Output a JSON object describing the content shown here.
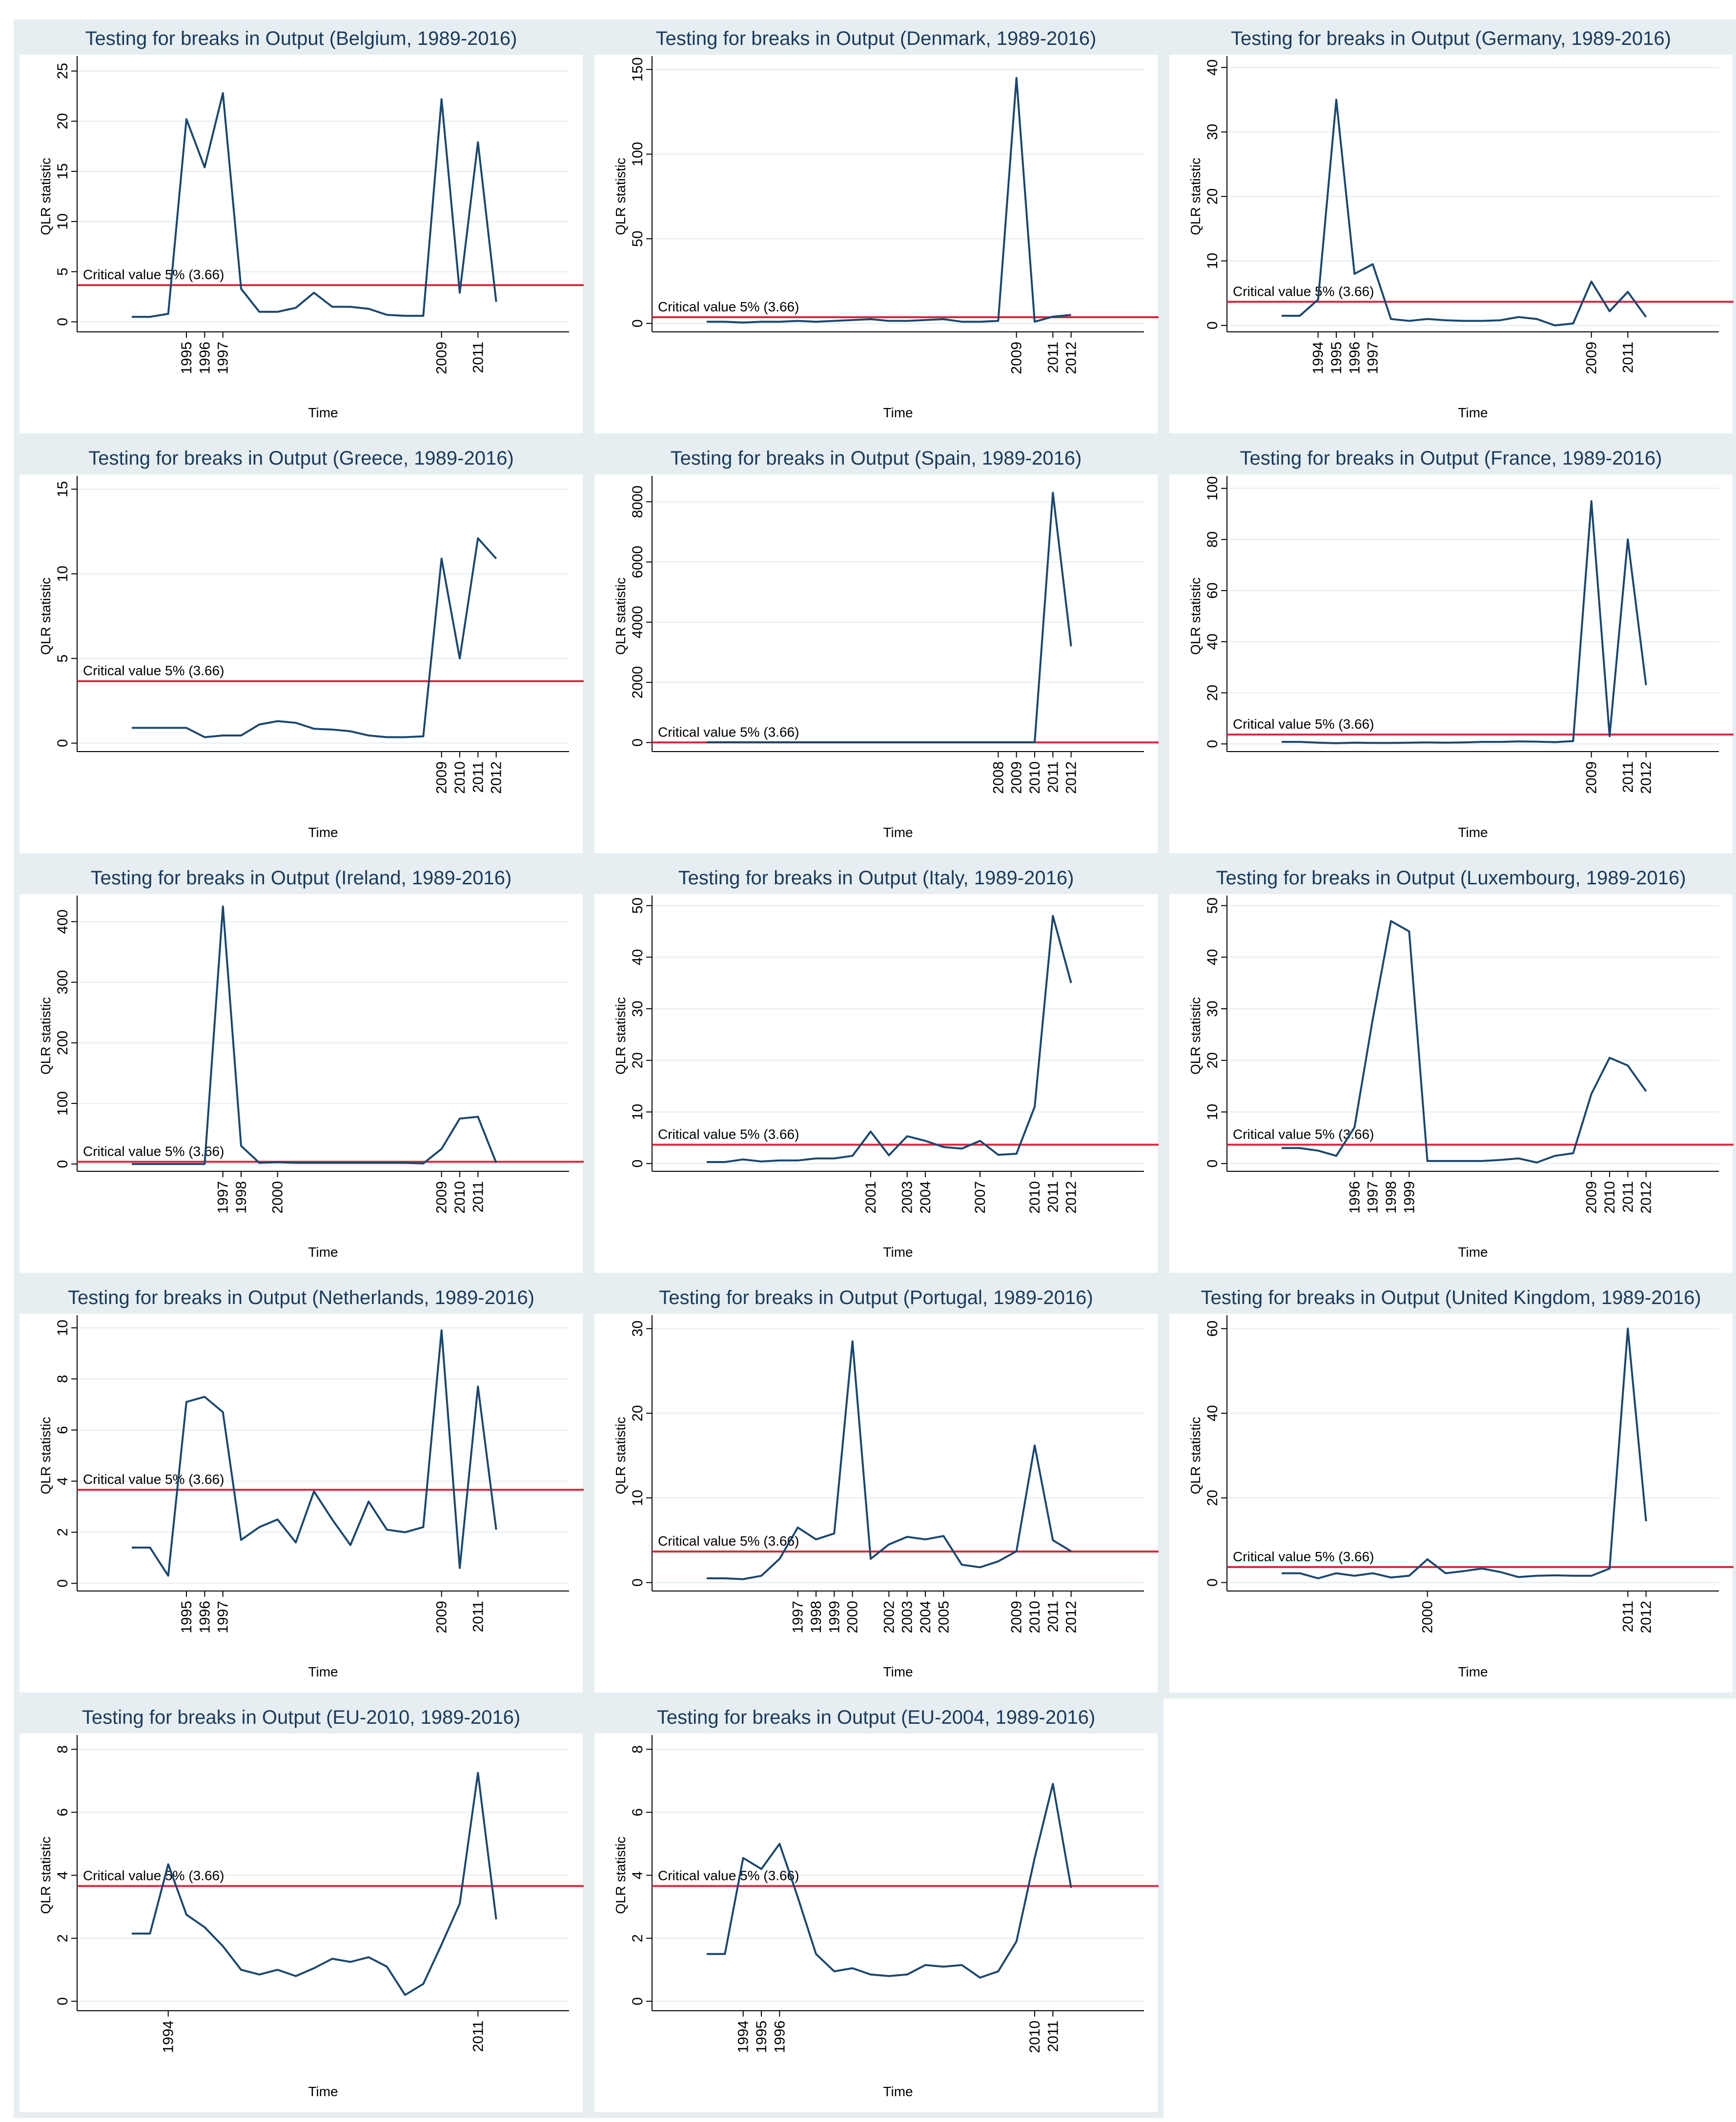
{
  "chart_data": [
    {
      "type": "line",
      "title": "Testing for breaks in Output (Belgium, 1989-2016)",
      "xlabel": "Time",
      "ylabel": "QLR statistic",
      "annotation": "Critical value 5% (3.66)",
      "critical_value": 3.66,
      "critical_color": "#d7263d",
      "color": "#1a476f",
      "grid": true,
      "x": [
        1992,
        1993,
        1994,
        1995,
        1996,
        1997,
        1998,
        1999,
        2000,
        2001,
        2002,
        2003,
        2004,
        2005,
        2006,
        2007,
        2008,
        2009,
        2010,
        2011,
        2012
      ],
      "values": [
        0.5,
        0.5,
        0.8,
        20.2,
        15.4,
        22.8,
        3.3,
        1.0,
        1.0,
        1.4,
        2.9,
        1.5,
        1.5,
        1.3,
        0.7,
        0.6,
        0.6,
        22.2,
        2.9,
        17.9,
        2.0
      ],
      "xlim": [
        1989,
        2016
      ],
      "xticks": [
        1995,
        1996,
        1997,
        2009,
        2011
      ],
      "ylim": [
        -1,
        26
      ],
      "yticks": [
        0,
        5,
        10,
        15,
        20,
        25
      ]
    },
    {
      "type": "line",
      "title": "Testing for breaks in Output (Denmark, 1989-2016)",
      "xlabel": "Time",
      "ylabel": "QLR statistic",
      "annotation": "Critical value 5% (3.66)",
      "critical_value": 3.66,
      "critical_color": "#d7263d",
      "color": "#1a476f",
      "grid": true,
      "x": [
        1992,
        1993,
        1994,
        1995,
        1996,
        1997,
        1998,
        1999,
        2000,
        2001,
        2002,
        2003,
        2004,
        2005,
        2006,
        2007,
        2008,
        2009,
        2010,
        2011,
        2012
      ],
      "values": [
        1,
        1,
        0.5,
        1,
        1,
        1.5,
        1,
        1.5,
        2,
        2.5,
        1.5,
        1.5,
        2,
        2.5,
        1,
        1,
        1.5,
        145,
        1,
        4,
        5
      ],
      "xlim": [
        1989,
        2016
      ],
      "xticks": [
        2009,
        2011,
        2012
      ],
      "ylim": [
        -5,
        155
      ],
      "yticks": [
        0,
        50,
        100,
        150
      ]
    },
    {
      "type": "line",
      "title": "Testing for breaks in Output (Germany, 1989-2016)",
      "xlabel": "Time",
      "ylabel": "QLR statistic",
      "annotation": "Critical value 5% (3.66)",
      "critical_value": 3.66,
      "critical_color": "#d7263d",
      "color": "#1a476f",
      "grid": true,
      "x": [
        1992,
        1993,
        1994,
        1995,
        1996,
        1997,
        1998,
        1999,
        2000,
        2001,
        2002,
        2003,
        2004,
        2005,
        2006,
        2007,
        2008,
        2009,
        2010,
        2011,
        2012
      ],
      "values": [
        1.5,
        1.5,
        4,
        35,
        8,
        9.5,
        1,
        0.7,
        1,
        0.8,
        0.7,
        0.7,
        0.8,
        1.3,
        1,
        0,
        0.3,
        6.8,
        2.2,
        5.2,
        1.3
      ],
      "xlim": [
        1989,
        2016
      ],
      "xticks": [
        1994,
        1995,
        1996,
        1997,
        2009,
        2011
      ],
      "ylim": [
        -1,
        41
      ],
      "yticks": [
        0,
        10,
        20,
        30,
        40
      ]
    },
    {
      "type": "line",
      "title": "Testing for breaks in Output (Greece, 1989-2016)",
      "xlabel": "Time",
      "ylabel": "QLR statistic",
      "annotation": "Critical value 5% (3.66)",
      "critical_value": 3.66,
      "critical_color": "#d7263d",
      "color": "#1a476f",
      "grid": true,
      "x": [
        1992,
        1993,
        1994,
        1995,
        1996,
        1997,
        1998,
        1999,
        2000,
        2001,
        2002,
        2003,
        2004,
        2005,
        2006,
        2007,
        2008,
        2009,
        2010,
        2011,
        2012
      ],
      "values": [
        0.9,
        0.9,
        0.9,
        0.9,
        0.35,
        0.45,
        0.45,
        1.1,
        1.3,
        1.2,
        0.85,
        0.8,
        0.7,
        0.45,
        0.35,
        0.35,
        0.4,
        10.9,
        5,
        12.1,
        10.9
      ],
      "xlim": [
        1989,
        2016
      ],
      "xticks": [
        2009,
        2010,
        2011,
        2012
      ],
      "ylim": [
        -0.5,
        15.5
      ],
      "yticks": [
        0,
        5,
        10,
        15
      ]
    },
    {
      "type": "line",
      "title": "Testing for breaks in Output (Spain, 1989-2016)",
      "xlabel": "Time",
      "ylabel": "QLR statistic",
      "annotation": "Critical value 5% (3.66)",
      "critical_value": 3.66,
      "critical_color": "#d7263d",
      "color": "#1a476f",
      "grid": true,
      "x": [
        1992,
        1993,
        1994,
        1995,
        1996,
        1997,
        1998,
        1999,
        2000,
        2001,
        2002,
        2003,
        2004,
        2005,
        2006,
        2007,
        2008,
        2009,
        2010,
        2011,
        2012
      ],
      "values": [
        10,
        10,
        10,
        10,
        10,
        10,
        10,
        10,
        10,
        10,
        10,
        10,
        10,
        10,
        10,
        10,
        10,
        10,
        10,
        8300,
        3200
      ],
      "xlim": [
        1989,
        2016
      ],
      "xticks": [
        2008,
        2009,
        2010,
        2011,
        2012
      ],
      "ylim": [
        -300,
        8700
      ],
      "yticks": [
        0,
        2000,
        4000,
        6000,
        8000
      ]
    },
    {
      "type": "line",
      "title": "Testing for breaks in Output (France, 1989-2016)",
      "xlabel": "Time",
      "ylabel": "QLR statistic",
      "annotation": "Critical value 5% (3.66)",
      "critical_value": 3.66,
      "critical_color": "#d7263d",
      "color": "#1a476f",
      "grid": true,
      "x": [
        1992,
        1993,
        1994,
        1995,
        1996,
        1997,
        1998,
        1999,
        2000,
        2001,
        2002,
        2003,
        2004,
        2005,
        2006,
        2007,
        2008,
        2009,
        2010,
        2011,
        2012
      ],
      "values": [
        0.8,
        0.8,
        0.5,
        0.3,
        0.5,
        0.4,
        0.4,
        0.5,
        0.6,
        0.5,
        0.6,
        0.8,
        0.8,
        1,
        0.9,
        0.7,
        1.1,
        95,
        3,
        80,
        23
      ],
      "xlim": [
        1989,
        2016
      ],
      "xticks": [
        2009,
        2011,
        2012
      ],
      "ylim": [
        -3,
        103
      ],
      "yticks": [
        0,
        20,
        40,
        60,
        80,
        100
      ]
    },
    {
      "type": "line",
      "title": "Testing for breaks in Output (Ireland, 1989-2016)",
      "xlabel": "Time",
      "ylabel": "QLR statistic",
      "annotation": "Critical value 5% (3.66)",
      "critical_value": 3.66,
      "critical_color": "#d7263d",
      "color": "#1a476f",
      "grid": true,
      "x": [
        1992,
        1993,
        1994,
        1995,
        1996,
        1997,
        1998,
        1999,
        2000,
        2001,
        2002,
        2003,
        2004,
        2005,
        2006,
        2007,
        2008,
        2009,
        2010,
        2011,
        2012
      ],
      "values": [
        0,
        0,
        0,
        0,
        0,
        425,
        30,
        2,
        3,
        2,
        2,
        2,
        2,
        2,
        2,
        2,
        1,
        25,
        75,
        78,
        2
      ],
      "xlim": [
        1989,
        2016
      ],
      "xticks": [
        1997,
        1998,
        2000,
        2009,
        2010,
        2011
      ],
      "ylim": [
        -12,
        435
      ],
      "yticks": [
        0,
        100,
        200,
        300,
        400
      ]
    },
    {
      "type": "line",
      "title": "Testing for breaks in Output (Italy, 1989-2016)",
      "xlabel": "Time",
      "ylabel": "QLR statistic",
      "annotation": "Critical value 5% (3.66)",
      "critical_value": 3.66,
      "critical_color": "#d7263d",
      "color": "#1a476f",
      "grid": true,
      "x": [
        1992,
        1993,
        1994,
        1995,
        1996,
        1997,
        1998,
        1999,
        2000,
        2001,
        2002,
        2003,
        2004,
        2005,
        2006,
        2007,
        2008,
        2009,
        2010,
        2011,
        2012
      ],
      "values": [
        0.3,
        0.3,
        0.8,
        0.4,
        0.6,
        0.6,
        1.0,
        1.0,
        1.5,
        6.2,
        1.6,
        5.3,
        4.4,
        3.2,
        2.9,
        4.4,
        1.7,
        1.9,
        11,
        48,
        35
      ],
      "xlim": [
        1989,
        2016
      ],
      "xticks": [
        2001,
        2003,
        2004,
        2007,
        2010,
        2011,
        2012
      ],
      "ylim": [
        -1.5,
        51
      ],
      "yticks": [
        0,
        10,
        20,
        30,
        40,
        50
      ]
    },
    {
      "type": "line",
      "title": "Testing for breaks in Output (Luxembourg, 1989-2016)",
      "xlabel": "Time",
      "ylabel": "QLR statistic",
      "annotation": "Critical value 5% (3.66)",
      "critical_value": 3.66,
      "critical_color": "#d7263d",
      "color": "#1a476f",
      "grid": true,
      "x": [
        1992,
        1993,
        1994,
        1995,
        1996,
        1997,
        1998,
        1999,
        2000,
        2001,
        2002,
        2003,
        2004,
        2005,
        2006,
        2007,
        2008,
        2009,
        2010,
        2011,
        2012
      ],
      "values": [
        3,
        3,
        2.5,
        1.5,
        7,
        28,
        47,
        45,
        0.5,
        0.5,
        0.5,
        0.5,
        0.7,
        1,
        0.2,
        1.5,
        2,
        13.5,
        20.5,
        19,
        14
      ],
      "xlim": [
        1989,
        2016
      ],
      "xticks": [
        1996,
        1997,
        1998,
        1999,
        2009,
        2010,
        2011,
        2012
      ],
      "ylim": [
        -1.5,
        51
      ],
      "yticks": [
        0,
        10,
        20,
        30,
        40,
        50
      ]
    },
    {
      "type": "line",
      "title": "Testing for breaks in Output (Netherlands, 1989-2016)",
      "xlabel": "Time",
      "ylabel": "QLR statistic",
      "annotation": "Critical value 5% (3.66)",
      "critical_value": 3.66,
      "critical_color": "#d7263d",
      "color": "#1a476f",
      "grid": true,
      "x": [
        1992,
        1993,
        1994,
        1995,
        1996,
        1997,
        1998,
        1999,
        2000,
        2001,
        2002,
        2003,
        2004,
        2005,
        2006,
        2007,
        2008,
        2009,
        2010,
        2011,
        2012
      ],
      "values": [
        1.4,
        1.4,
        0.3,
        7.1,
        7.3,
        6.7,
        1.7,
        2.2,
        2.5,
        1.6,
        3.6,
        2.5,
        1.5,
        3.2,
        2.1,
        2.0,
        2.2,
        9.9,
        0.6,
        7.7,
        2.1
      ],
      "xlim": [
        1989,
        2016
      ],
      "xticks": [
        1995,
        1996,
        1997,
        2009,
        2011
      ],
      "ylim": [
        -0.3,
        10.3
      ],
      "yticks": [
        0,
        2,
        4,
        6,
        8,
        10
      ]
    },
    {
      "type": "line",
      "title": "Testing for breaks in Output (Portugal, 1989-2016)",
      "xlabel": "Time",
      "ylabel": "QLR statistic",
      "annotation": "Critical value 5% (3.66)",
      "critical_value": 3.66,
      "critical_color": "#d7263d",
      "color": "#1a476f",
      "grid": true,
      "x": [
        1992,
        1993,
        1994,
        1995,
        1996,
        1997,
        1998,
        1999,
        2000,
        2001,
        2002,
        2003,
        2004,
        2005,
        2006,
        2007,
        2008,
        2009,
        2010,
        2011,
        2012
      ],
      "values": [
        0.5,
        0.5,
        0.4,
        0.8,
        2.8,
        6.5,
        5.1,
        5.8,
        28.5,
        2.8,
        4.5,
        5.4,
        5.1,
        5.5,
        2.1,
        1.8,
        2.5,
        3.7,
        16.2,
        5,
        3.7
      ],
      "xlim": [
        1989,
        2016
      ],
      "xticks": [
        1997,
        1998,
        1999,
        2000,
        2002,
        2003,
        2004,
        2005,
        2009,
        2010,
        2011,
        2012
      ],
      "ylim": [
        -1,
        31
      ],
      "yticks": [
        0,
        10,
        20,
        30
      ]
    },
    {
      "type": "line",
      "title": "Testing for breaks in Output (United Kingdom, 1989-2016)",
      "xlabel": "Time",
      "ylabel": "QLR statistic",
      "annotation": "Critical value 5% (3.66)",
      "critical_value": 3.66,
      "critical_color": "#d7263d",
      "color": "#1a476f",
      "grid": true,
      "x": [
        1992,
        1993,
        1994,
        1995,
        1996,
        1997,
        1998,
        1999,
        2000,
        2001,
        2002,
        2003,
        2004,
        2005,
        2006,
        2007,
        2008,
        2009,
        2010,
        2011,
        2012
      ],
      "values": [
        2.2,
        2.2,
        1.0,
        2.2,
        1.6,
        2.2,
        1.2,
        1.6,
        5.5,
        2.2,
        2.7,
        3.3,
        2.5,
        1.3,
        1.6,
        1.7,
        1.6,
        1.6,
        3.3,
        60,
        14.5
      ],
      "xlim": [
        1989,
        2016
      ],
      "xticks": [
        2000,
        2011,
        2012
      ],
      "ylim": [
        -2,
        62
      ],
      "yticks": [
        0,
        20,
        40,
        60
      ]
    },
    {
      "type": "line",
      "title": "Testing for breaks in Output (EU-2010, 1989-2016)",
      "xlabel": "Time",
      "ylabel": "QLR statistic",
      "annotation": "Critical value 5% (3.66)",
      "critical_value": 3.66,
      "critical_color": "#d7263d",
      "color": "#1a476f",
      "grid": true,
      "x": [
        1992,
        1993,
        1994,
        1995,
        1996,
        1997,
        1998,
        1999,
        2000,
        2001,
        2002,
        2003,
        2004,
        2005,
        2006,
        2007,
        2008,
        2009,
        2010,
        2011,
        2012
      ],
      "values": [
        2.15,
        2.15,
        4.35,
        2.75,
        2.35,
        1.75,
        1.0,
        0.85,
        1.0,
        0.8,
        1.05,
        1.35,
        1.25,
        1.4,
        1.1,
        0.2,
        0.55,
        1.8,
        3.1,
        7.25,
        2.6
      ],
      "xlim": [
        1989,
        2016
      ],
      "xticks": [
        1994,
        2011
      ],
      "ylim": [
        -0.3,
        8.3
      ],
      "yticks": [
        0,
        2,
        4,
        6,
        8
      ]
    },
    {
      "type": "line",
      "title": "Testing for breaks in Output (EU-2004, 1989-2016)",
      "xlabel": "Time",
      "ylabel": "QLR statistic",
      "annotation": "Critical value 5% (3.66)",
      "critical_value": 3.66,
      "critical_color": "#d7263d",
      "color": "#1a476f",
      "grid": true,
      "x": [
        1992,
        1993,
        1994,
        1995,
        1996,
        1997,
        1998,
        1999,
        2000,
        2001,
        2002,
        2003,
        2004,
        2005,
        2006,
        2007,
        2008,
        2009,
        2010,
        2011,
        2012
      ],
      "values": [
        1.5,
        1.5,
        4.55,
        4.2,
        5.0,
        3.3,
        1.5,
        0.95,
        1.05,
        0.85,
        0.8,
        0.85,
        1.15,
        1.1,
        1.15,
        0.75,
        0.95,
        1.9,
        4.55,
        6.9,
        3.6
      ],
      "xlim": [
        1989,
        2016
      ],
      "xticks": [
        1994,
        1995,
        1996,
        2010,
        2011
      ],
      "ylim": [
        -0.3,
        8.3
      ],
      "yticks": [
        0,
        2,
        4,
        6,
        8
      ]
    }
  ]
}
